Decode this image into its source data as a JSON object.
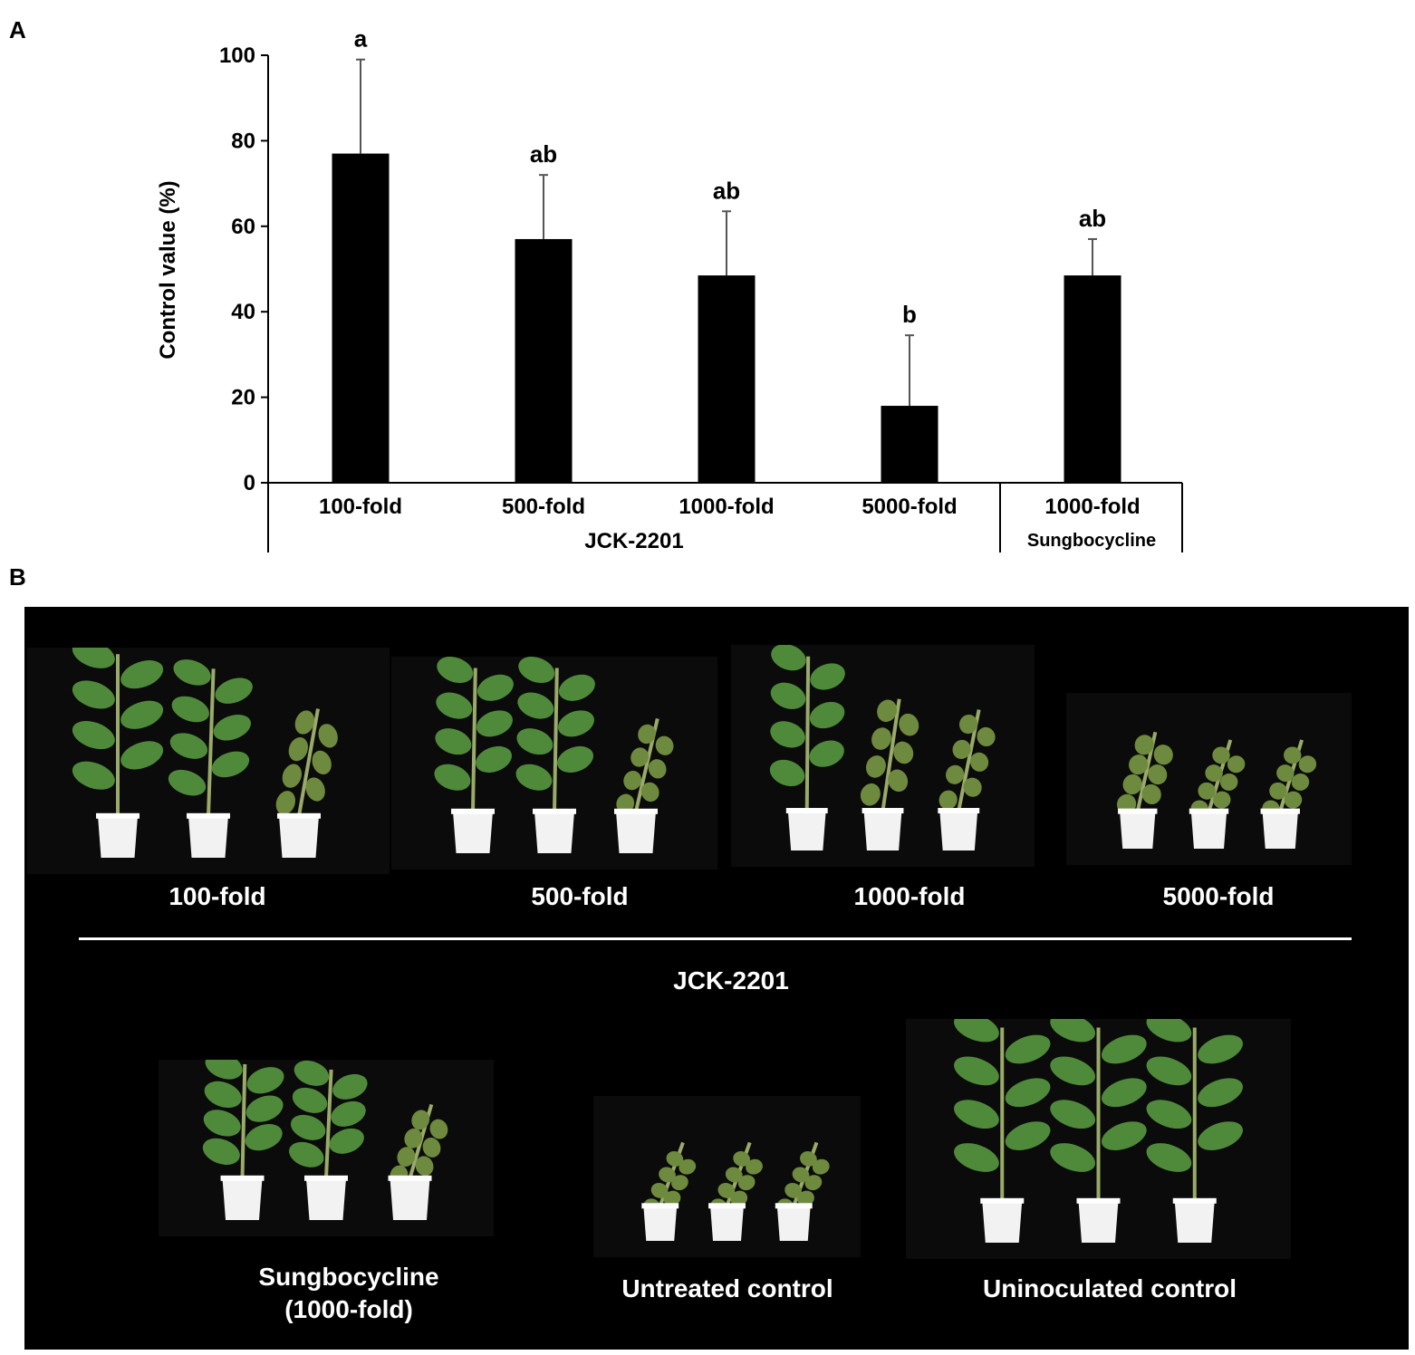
{
  "panel_a_label": "A",
  "panel_b_label": "B",
  "chart_data": {
    "type": "bar",
    "categories": [
      "100-fold",
      "500-fold",
      "1000-fold",
      "5000-fold",
      "1000-fold"
    ],
    "values": [
      77,
      57,
      48.5,
      18,
      48.5
    ],
    "errors": [
      22,
      15,
      15,
      16.5,
      8.5
    ],
    "significance_letters": [
      "a",
      "ab",
      "ab",
      "b",
      "ab"
    ],
    "group_labels": [
      {
        "label": "JCK-2201",
        "categories": [
          0,
          1,
          2,
          3
        ]
      },
      {
        "label": "Sungbocycline",
        "categories": [
          4
        ]
      }
    ],
    "title": "",
    "xlabel": "",
    "ylabel": "Control value (%)",
    "ylim": [
      0,
      100
    ],
    "yticks": [
      0,
      20,
      40,
      60,
      80,
      100
    ],
    "bar_color": "#000000",
    "error_color": "#555555",
    "grid": false
  },
  "photos": {
    "top_row": [
      {
        "label": "100-fold",
        "health": [
          1.0,
          0.8,
          0.25
        ]
      },
      {
        "label": "500-fold",
        "health": [
          0.9,
          0.9,
          0.15
        ]
      },
      {
        "label": "1000-fold",
        "health": [
          0.95,
          0.35,
          0.2
        ]
      },
      {
        "label": "5000-fold",
        "health": [
          0.3,
          0.15,
          0.15
        ]
      }
    ],
    "group_label": "JCK-2201",
    "bottom_row": [
      {
        "label_line1": "Sungbocycline",
        "label_line2": "(1000-fold)",
        "health": [
          0.9,
          0.8,
          0.15
        ]
      },
      {
        "label": "Untreated control",
        "health": [
          0.1,
          0.1,
          0.1
        ]
      },
      {
        "label": "Uninoculated control",
        "health": [
          1.0,
          1.0,
          1.0
        ]
      }
    ],
    "colors": {
      "leaf": "#4f8a3a",
      "wilt": "#6e8a3e",
      "stem": "#9aaa6a",
      "pot": "#f2f2f2"
    }
  }
}
